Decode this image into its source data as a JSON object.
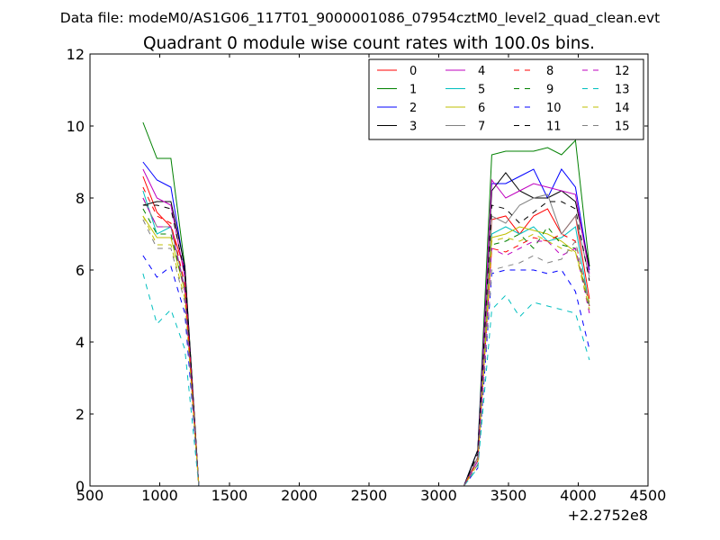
{
  "chart_data": {
    "type": "line",
    "supertitle": "Data file: modeM0/AS1G06_117T01_9000001086_07954cztM0_level2_quad_clean.evt",
    "title": "Quadrant 0 module wise count rates with 100.0s bins.",
    "xlabel": "",
    "ylabel": "",
    "x_offset_label": "+2.2752e8",
    "xlim": [
      500,
      4500
    ],
    "ylim": [
      0,
      12
    ],
    "xticks": [
      500,
      1000,
      1500,
      2000,
      2500,
      3000,
      3500,
      4000,
      4500
    ],
    "yticks": [
      0,
      2,
      4,
      6,
      8,
      10,
      12
    ],
    "x": [
      880,
      980,
      1080,
      1180,
      1280,
      1380,
      3180,
      3280,
      3380,
      3480,
      3580,
      3680,
      3780,
      3880,
      3980,
      4080
    ],
    "legend_location": "upper right",
    "legend_columns": 4,
    "series": [
      {
        "name": "0",
        "color": "#ff0000",
        "dashed": false,
        "values": [
          8.6,
          7.6,
          7.2,
          6.0,
          0.0,
          0.0,
          0.0,
          0.8,
          7.4,
          7.5,
          7.0,
          7.5,
          7.7,
          7.0,
          7.5,
          5.2
        ]
      },
      {
        "name": "1",
        "color": "#008000",
        "dashed": false,
        "values": [
          10.1,
          9.1,
          9.1,
          6.1,
          0.0,
          0.0,
          0.0,
          1.0,
          9.2,
          9.3,
          9.3,
          9.3,
          9.4,
          9.2,
          9.6,
          6.1
        ]
      },
      {
        "name": "2",
        "color": "#0000ff",
        "dashed": false,
        "values": [
          9.0,
          8.5,
          8.3,
          6.0,
          0.0,
          0.0,
          0.0,
          1.0,
          8.4,
          8.4,
          8.6,
          8.8,
          8.0,
          8.8,
          8.3,
          6.0
        ]
      },
      {
        "name": "3",
        "color": "#000000",
        "dashed": false,
        "values": [
          7.8,
          7.9,
          7.9,
          6.1,
          0.0,
          0.0,
          0.0,
          1.0,
          8.2,
          8.7,
          8.2,
          8.0,
          8.0,
          8.2,
          7.9,
          6.1
        ]
      },
      {
        "name": "4",
        "color": "#bf00bf",
        "dashed": false,
        "values": [
          8.8,
          8.0,
          7.8,
          5.8,
          0.0,
          0.0,
          0.0,
          0.8,
          8.5,
          8.0,
          8.2,
          8.4,
          8.3,
          8.2,
          8.1,
          5.9
        ]
      },
      {
        "name": "5",
        "color": "#00bfbf",
        "dashed": false,
        "values": [
          8.2,
          7.0,
          7.2,
          5.5,
          0.0,
          0.0,
          0.0,
          0.7,
          7.0,
          7.2,
          7.0,
          7.2,
          6.8,
          6.9,
          7.2,
          5.0
        ]
      },
      {
        "name": "6",
        "color": "#bfbf00",
        "dashed": false,
        "values": [
          7.5,
          6.9,
          6.9,
          5.4,
          0.0,
          0.0,
          0.0,
          0.7,
          6.9,
          7.0,
          7.2,
          7.1,
          7.0,
          6.8,
          6.5,
          5.1
        ]
      },
      {
        "name": "7",
        "color": "#808080",
        "dashed": false,
        "values": [
          8.0,
          7.2,
          7.2,
          5.5,
          0.0,
          0.0,
          0.0,
          0.8,
          7.5,
          7.3,
          7.8,
          8.0,
          8.1,
          7.0,
          7.5,
          5.8
        ]
      },
      {
        "name": "8",
        "color": "#ff0000",
        "dashed": true,
        "values": [
          8.3,
          7.5,
          7.3,
          5.6,
          0.0,
          0.0,
          0.0,
          0.7,
          6.6,
          6.5,
          6.7,
          6.9,
          6.8,
          7.0,
          6.8,
          5.0
        ]
      },
      {
        "name": "9",
        "color": "#008000",
        "dashed": true,
        "values": [
          7.7,
          7.0,
          7.0,
          5.4,
          0.0,
          0.0,
          0.0,
          0.6,
          6.7,
          6.8,
          7.0,
          6.6,
          7.2,
          6.7,
          6.6,
          4.9
        ]
      },
      {
        "name": "10",
        "color": "#0000ff",
        "dashed": true,
        "values": [
          6.4,
          5.8,
          6.1,
          4.8,
          0.0,
          0.0,
          0.0,
          0.5,
          5.9,
          6.0,
          6.0,
          6.0,
          5.9,
          6.0,
          5.4,
          3.8
        ]
      },
      {
        "name": "11",
        "color": "#000000",
        "dashed": true,
        "values": [
          7.8,
          7.8,
          7.7,
          5.9,
          0.0,
          0.0,
          0.0,
          0.9,
          7.8,
          7.7,
          7.3,
          7.6,
          7.9,
          7.9,
          7.7,
          5.7
        ]
      },
      {
        "name": "12",
        "color": "#bf00bf",
        "dashed": true,
        "values": [
          8.0,
          7.2,
          7.2,
          5.4,
          0.0,
          0.0,
          0.0,
          0.7,
          6.6,
          6.4,
          6.6,
          6.8,
          6.8,
          6.4,
          6.6,
          4.8
        ]
      },
      {
        "name": "13",
        "color": "#00bfbf",
        "dashed": true,
        "values": [
          5.9,
          4.5,
          4.9,
          3.8,
          0.0,
          0.0,
          0.0,
          0.5,
          4.9,
          5.3,
          4.7,
          5.1,
          5.0,
          4.9,
          4.8,
          3.5
        ]
      },
      {
        "name": "14",
        "color": "#bfbf00",
        "dashed": true,
        "values": [
          7.5,
          6.7,
          6.7,
          5.2,
          0.0,
          0.0,
          0.0,
          0.6,
          6.8,
          6.9,
          6.8,
          7.0,
          6.8,
          6.6,
          6.5,
          4.9
        ]
      },
      {
        "name": "15",
        "color": "#808080",
        "dashed": true,
        "values": [
          7.4,
          6.6,
          6.6,
          5.1,
          0.0,
          0.0,
          0.0,
          0.6,
          6.0,
          6.1,
          6.2,
          6.4,
          6.2,
          6.3,
          6.8,
          5.0
        ]
      }
    ]
  }
}
